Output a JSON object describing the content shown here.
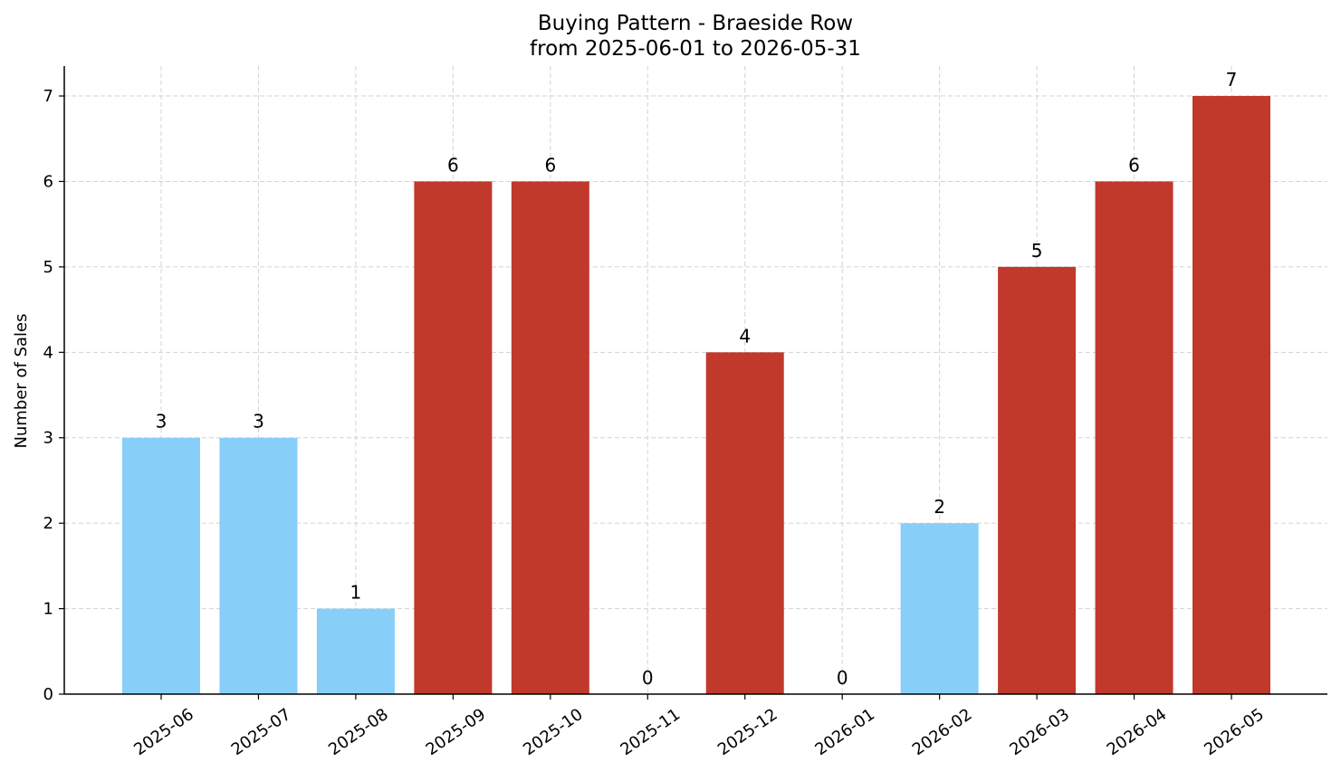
{
  "chart_data": {
    "type": "bar",
    "title": "Buying Pattern - Braeside Row",
    "subtitle": "from 2025-06-01 to 2026-05-31",
    "xlabel": "",
    "ylabel": "Number of Sales",
    "ylim": [
      0,
      7.35
    ],
    "yticks": [
      0,
      1,
      2,
      3,
      4,
      5,
      6,
      7
    ],
    "grid": true,
    "categories": [
      "2025-06",
      "2025-07",
      "2025-08",
      "2025-09",
      "2025-10",
      "2025-11",
      "2025-12",
      "2026-01",
      "2026-02",
      "2026-03",
      "2026-04",
      "2026-05"
    ],
    "values": [
      3,
      3,
      1,
      6,
      6,
      0,
      4,
      0,
      2,
      5,
      6,
      7
    ],
    "colors": {
      "low": "#87cef8",
      "high": "#c0392b"
    },
    "bar_color_groups": [
      "low",
      "low",
      "low",
      "high",
      "high",
      "high",
      "high",
      "low",
      "low",
      "high",
      "high",
      "high"
    ]
  }
}
